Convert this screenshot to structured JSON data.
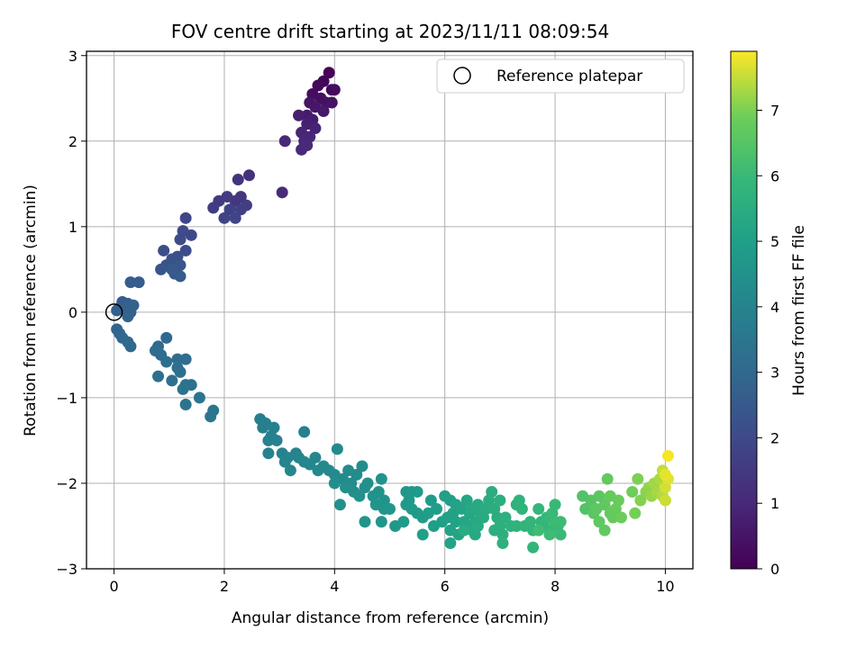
{
  "chart_data": {
    "type": "scatter",
    "title": "FOV centre drift starting at 2023/11/11 08:09:54",
    "xlabel": "Angular distance from reference (arcmin)",
    "ylabel": "Rotation from reference (arcmin)",
    "xlim": [
      -0.5,
      10.5
    ],
    "ylim": [
      -3.0,
      3.05
    ],
    "xticks": [
      0,
      2,
      4,
      6,
      8,
      10
    ],
    "yticks": [
      -3,
      -2,
      -1,
      0,
      1,
      2,
      3
    ],
    "grid": true,
    "legend": {
      "placement": "top-right",
      "entries": [
        "Reference platepar"
      ]
    },
    "reference_point": {
      "x": 0,
      "y": 0,
      "label": "Reference platepar"
    },
    "colorbar": {
      "label": "Hours from first FF file",
      "colormap": "viridis",
      "range": [
        0,
        7.9
      ],
      "ticks": [
        0,
        1,
        2,
        3,
        4,
        5,
        6,
        7
      ]
    },
    "points": [
      [
        3.9,
        2.8,
        0.05
      ],
      [
        3.8,
        2.7,
        0.1
      ],
      [
        3.7,
        2.65,
        0.15
      ],
      [
        3.95,
        2.6,
        0.2
      ],
      [
        4.0,
        2.6,
        0.25
      ],
      [
        3.6,
        2.55,
        0.3
      ],
      [
        3.75,
        2.5,
        0.35
      ],
      [
        3.85,
        2.45,
        0.4
      ],
      [
        3.95,
        2.45,
        0.45
      ],
      [
        3.55,
        2.45,
        0.5
      ],
      [
        3.65,
        2.4,
        0.55
      ],
      [
        3.8,
        2.35,
        0.6
      ],
      [
        3.5,
        2.3,
        0.65
      ],
      [
        3.6,
        2.25,
        0.7
      ],
      [
        3.35,
        2.3,
        0.75
      ],
      [
        3.5,
        2.2,
        0.8
      ],
      [
        3.65,
        2.15,
        0.85
      ],
      [
        3.4,
        2.1,
        0.9
      ],
      [
        3.55,
        2.05,
        0.95
      ],
      [
        3.45,
        2.0,
        1.0
      ],
      [
        3.1,
        2.0,
        1.02
      ],
      [
        3.4,
        1.9,
        1.05
      ],
      [
        3.5,
        1.95,
        1.08
      ],
      [
        3.05,
        1.4,
        1.1
      ],
      [
        2.45,
        1.6,
        1.3
      ],
      [
        2.25,
        1.55,
        1.35
      ],
      [
        2.3,
        1.35,
        1.4
      ],
      [
        2.2,
        1.3,
        1.45
      ],
      [
        1.9,
        1.3,
        1.5
      ],
      [
        2.05,
        1.35,
        1.55
      ],
      [
        1.8,
        1.22,
        1.6
      ],
      [
        2.4,
        1.25,
        1.65
      ],
      [
        2.3,
        1.2,
        1.7
      ],
      [
        2.1,
        1.2,
        1.75
      ],
      [
        2.0,
        1.1,
        1.8
      ],
      [
        2.2,
        1.1,
        1.85
      ],
      [
        1.3,
        1.1,
        1.9
      ],
      [
        1.4,
        0.9,
        1.95
      ],
      [
        1.25,
        0.95,
        2.0
      ],
      [
        1.2,
        0.85,
        2.05
      ],
      [
        1.3,
        0.72,
        2.1
      ],
      [
        0.9,
        0.72,
        2.15
      ],
      [
        1.15,
        0.65,
        2.2
      ],
      [
        1.05,
        0.62,
        2.25
      ],
      [
        0.95,
        0.55,
        2.3
      ],
      [
        1.2,
        0.55,
        2.35
      ],
      [
        0.85,
        0.5,
        2.4
      ],
      [
        1.1,
        0.45,
        2.45
      ],
      [
        1.05,
        0.5,
        2.5
      ],
      [
        1.2,
        0.42,
        2.55
      ],
      [
        0.3,
        0.35,
        2.6
      ],
      [
        0.45,
        0.35,
        2.62
      ],
      [
        0.15,
        0.12,
        2.65
      ],
      [
        0.25,
        0.1,
        2.68
      ],
      [
        0.1,
        0.05,
        2.7
      ],
      [
        0.05,
        0.02,
        2.72
      ],
      [
        0.2,
        0.02,
        2.74
      ],
      [
        0.3,
        0.0,
        2.76
      ],
      [
        0.35,
        0.08,
        2.78
      ],
      [
        0.25,
        -0.05,
        2.8
      ],
      [
        0.05,
        -0.2,
        2.85
      ],
      [
        0.1,
        -0.25,
        2.9
      ],
      [
        0.15,
        -0.3,
        2.92
      ],
      [
        0.25,
        -0.35,
        2.95
      ],
      [
        0.3,
        -0.4,
        2.98
      ],
      [
        0.95,
        -0.3,
        3.0
      ],
      [
        0.8,
        -0.4,
        3.05
      ],
      [
        0.75,
        -0.45,
        3.1
      ],
      [
        0.85,
        -0.5,
        3.12
      ],
      [
        1.15,
        -0.55,
        3.15
      ],
      [
        1.3,
        -0.55,
        3.18
      ],
      [
        0.95,
        -0.58,
        3.2
      ],
      [
        1.15,
        -0.65,
        3.22
      ],
      [
        1.2,
        -0.7,
        3.25
      ],
      [
        0.8,
        -0.75,
        3.28
      ],
      [
        1.05,
        -0.8,
        3.3
      ],
      [
        1.3,
        -0.85,
        3.32
      ],
      [
        1.4,
        -0.85,
        3.35
      ],
      [
        1.25,
        -0.9,
        3.38
      ],
      [
        1.55,
        -1.0,
        3.4
      ],
      [
        1.3,
        -1.08,
        3.42
      ],
      [
        1.8,
        -1.15,
        3.45
      ],
      [
        1.75,
        -1.22,
        3.48
      ],
      [
        2.65,
        -1.25,
        3.8
      ],
      [
        2.75,
        -1.3,
        3.82
      ],
      [
        2.7,
        -1.35,
        3.84
      ],
      [
        2.9,
        -1.35,
        3.86
      ],
      [
        2.85,
        -1.45,
        3.88
      ],
      [
        2.95,
        -1.5,
        3.9
      ],
      [
        3.45,
        -1.4,
        3.92
      ],
      [
        2.8,
        -1.5,
        3.94
      ],
      [
        3.05,
        -1.65,
        3.96
      ],
      [
        3.3,
        -1.65,
        3.98
      ],
      [
        2.8,
        -1.65,
        4.0
      ],
      [
        3.15,
        -1.7,
        4.02
      ],
      [
        3.1,
        -1.75,
        4.04
      ],
      [
        3.35,
        -1.7,
        4.06
      ],
      [
        3.45,
        -1.75,
        4.08
      ],
      [
        3.55,
        -1.78,
        4.1
      ],
      [
        3.2,
        -1.85,
        4.12
      ],
      [
        3.65,
        -1.7,
        4.14
      ],
      [
        3.7,
        -1.85,
        4.16
      ],
      [
        3.8,
        -1.8,
        4.18
      ],
      [
        3.9,
        -1.85,
        4.2
      ],
      [
        4.05,
        -1.6,
        4.22
      ],
      [
        4.0,
        -1.9,
        4.24
      ],
      [
        4.15,
        -1.95,
        4.26
      ],
      [
        4.25,
        -1.85,
        4.28
      ],
      [
        4.3,
        -2.0,
        4.3
      ],
      [
        4.4,
        -1.9,
        4.32
      ],
      [
        4.5,
        -1.8,
        4.34
      ],
      [
        4.35,
        -2.1,
        4.36
      ],
      [
        4.55,
        -2.05,
        4.38
      ],
      [
        4.0,
        -2.0,
        4.4
      ],
      [
        4.2,
        -2.05,
        4.42
      ],
      [
        4.1,
        -2.25,
        4.44
      ],
      [
        4.45,
        -2.15,
        4.46
      ],
      [
        4.6,
        -2.0,
        4.48
      ],
      [
        4.7,
        -2.15,
        4.5
      ],
      [
        4.85,
        -1.95,
        4.52
      ],
      [
        4.8,
        -2.1,
        4.54
      ],
      [
        4.9,
        -2.2,
        4.56
      ],
      [
        4.75,
        -2.25,
        4.58
      ],
      [
        4.55,
        -2.45,
        4.6
      ],
      [
        4.9,
        -2.3,
        4.62
      ],
      [
        5.0,
        -2.3,
        4.64
      ],
      [
        4.85,
        -2.45,
        4.66
      ],
      [
        5.1,
        -2.5,
        4.68
      ],
      [
        5.3,
        -2.1,
        4.7
      ],
      [
        5.4,
        -2.1,
        4.72
      ],
      [
        5.35,
        -2.2,
        4.74
      ],
      [
        5.3,
        -2.25,
        4.76
      ],
      [
        5.4,
        -2.3,
        4.78
      ],
      [
        5.25,
        -2.45,
        4.8
      ],
      [
        5.5,
        -2.1,
        4.82
      ],
      [
        5.5,
        -2.35,
        4.84
      ],
      [
        5.6,
        -2.4,
        4.86
      ],
      [
        5.75,
        -2.2,
        4.88
      ],
      [
        5.7,
        -2.35,
        4.9
      ],
      [
        5.8,
        -2.5,
        4.92
      ],
      [
        5.85,
        -2.3,
        4.94
      ],
      [
        5.6,
        -2.6,
        4.96
      ],
      [
        5.95,
        -2.45,
        4.98
      ],
      [
        6.0,
        -2.15,
        5.0
      ],
      [
        6.1,
        -2.2,
        5.02
      ],
      [
        6.05,
        -2.4,
        5.04
      ],
      [
        6.15,
        -2.35,
        5.06
      ],
      [
        6.2,
        -2.25,
        5.08
      ],
      [
        6.1,
        -2.55,
        5.1
      ],
      [
        6.2,
        -2.45,
        5.12
      ],
      [
        6.1,
        -2.7,
        5.14
      ],
      [
        6.3,
        -2.3,
        5.16
      ],
      [
        6.25,
        -2.6,
        5.18
      ],
      [
        6.35,
        -2.45,
        5.2
      ],
      [
        6.4,
        -2.2,
        5.22
      ],
      [
        6.45,
        -2.35,
        5.24
      ],
      [
        6.4,
        -2.5,
        5.26
      ],
      [
        6.5,
        -2.3,
        5.28
      ],
      [
        6.55,
        -2.45,
        5.3
      ],
      [
        6.5,
        -2.55,
        5.32
      ],
      [
        6.55,
        -2.6,
        5.34
      ],
      [
        6.6,
        -2.25,
        5.36
      ],
      [
        6.65,
        -2.35,
        5.38
      ],
      [
        6.6,
        -2.5,
        5.4
      ],
      [
        6.7,
        -2.4,
        5.42
      ],
      [
        6.35,
        -2.55,
        5.44
      ],
      [
        6.75,
        -2.3,
        5.46
      ],
      [
        6.8,
        -2.2,
        5.48
      ],
      [
        6.85,
        -2.1,
        5.5
      ],
      [
        6.9,
        -2.3,
        5.52
      ],
      [
        6.95,
        -2.4,
        5.54
      ],
      [
        7.0,
        -2.2,
        5.56
      ],
      [
        6.9,
        -2.55,
        5.58
      ],
      [
        7.0,
        -2.5,
        5.6
      ],
      [
        7.05,
        -2.6,
        5.62
      ],
      [
        7.1,
        -2.4,
        5.64
      ],
      [
        7.05,
        -2.7,
        5.66
      ],
      [
        7.2,
        -2.5,
        5.68
      ],
      [
        7.3,
        -2.25,
        5.7
      ],
      [
        7.35,
        -2.2,
        5.72
      ],
      [
        7.3,
        -2.5,
        5.74
      ],
      [
        7.4,
        -2.3,
        5.76
      ],
      [
        7.45,
        -2.5,
        5.78
      ],
      [
        7.55,
        -2.45,
        5.8
      ],
      [
        7.6,
        -2.55,
        5.82
      ],
      [
        7.6,
        -2.75,
        5.84
      ],
      [
        7.7,
        -2.3,
        5.86
      ],
      [
        7.75,
        -2.45,
        5.88
      ],
      [
        7.8,
        -2.5,
        5.9
      ],
      [
        7.85,
        -2.4,
        5.92
      ],
      [
        7.9,
        -2.55,
        5.94
      ],
      [
        8.0,
        -2.25,
        5.96
      ],
      [
        8.05,
        -2.5,
        5.98
      ],
      [
        7.95,
        -2.35,
        6.0
      ],
      [
        8.1,
        -2.6,
        6.02
      ],
      [
        8.0,
        -2.45,
        6.04
      ],
      [
        8.1,
        -2.45,
        6.06
      ],
      [
        7.9,
        -2.6,
        6.08
      ],
      [
        7.7,
        -2.55,
        6.1
      ],
      [
        8.5,
        -2.15,
        6.4
      ],
      [
        8.55,
        -2.3,
        6.45
      ],
      [
        8.65,
        -2.2,
        6.5
      ],
      [
        8.7,
        -2.35,
        6.55
      ],
      [
        8.8,
        -2.15,
        6.6
      ],
      [
        8.75,
        -2.3,
        6.62
      ],
      [
        8.8,
        -2.45,
        6.64
      ],
      [
        8.9,
        -2.25,
        6.66
      ],
      [
        8.9,
        -2.55,
        6.68
      ],
      [
        8.95,
        -1.95,
        6.7
      ],
      [
        9.0,
        -2.15,
        6.72
      ],
      [
        9.0,
        -2.35,
        6.74
      ],
      [
        9.05,
        -2.4,
        6.76
      ],
      [
        9.1,
        -2.3,
        6.78
      ],
      [
        9.15,
        -2.2,
        6.8
      ],
      [
        9.2,
        -2.4,
        6.82
      ],
      [
        9.4,
        -2.1,
        6.9
      ],
      [
        9.45,
        -2.35,
        6.95
      ],
      [
        9.5,
        -1.95,
        7.0
      ],
      [
        9.55,
        -2.2,
        7.05
      ],
      [
        9.65,
        -2.1,
        7.1
      ],
      [
        9.7,
        -2.05,
        7.15
      ],
      [
        9.75,
        -2.15,
        7.2
      ],
      [
        9.8,
        -2.0,
        7.25
      ],
      [
        9.85,
        -2.1,
        7.3
      ],
      [
        9.9,
        -1.95,
        7.35
      ],
      [
        9.95,
        -2.15,
        7.4
      ],
      [
        9.95,
        -1.85,
        7.5
      ],
      [
        10.0,
        -2.2,
        7.55
      ],
      [
        10.0,
        -2.05,
        7.6
      ],
      [
        10.05,
        -1.95,
        7.7
      ],
      [
        10.0,
        -1.9,
        7.75
      ],
      [
        10.05,
        -1.68,
        7.85
      ]
    ]
  }
}
